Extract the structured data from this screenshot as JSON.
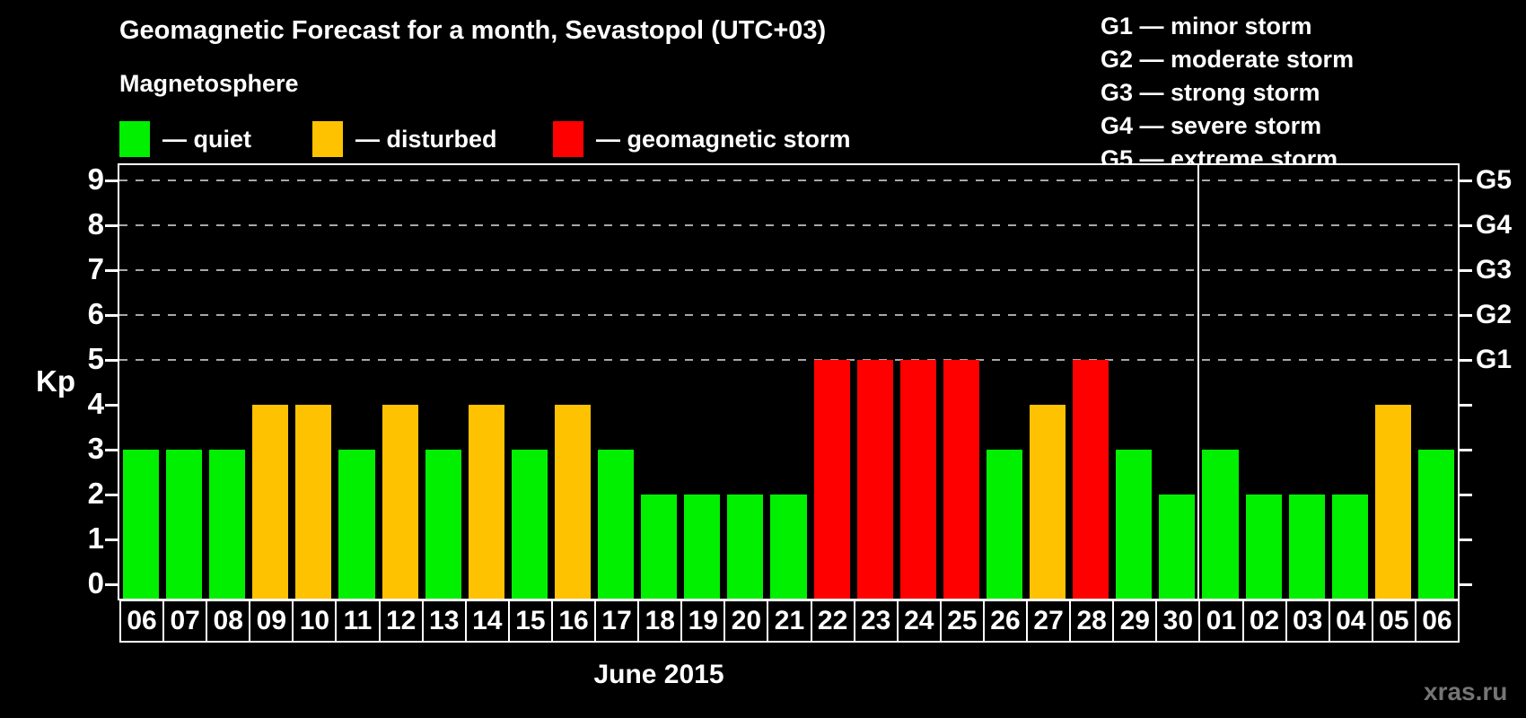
{
  "title": "Geomagnetic Forecast for a month, Sevastopol (UTC+03)",
  "legend": {
    "heading": "Magnetosphere",
    "items": [
      {
        "name": "quiet",
        "label": "— quiet",
        "color": "#00f000"
      },
      {
        "name": "disturbed",
        "label": "— disturbed",
        "color": "#ffc200"
      },
      {
        "name": "storm",
        "label": "— geomagnetic storm",
        "color": "#ff0000"
      }
    ]
  },
  "g_scale_legend": [
    "G1 — minor storm",
    "G2 — moderate storm",
    "G3 — strong storm",
    "G4 — severe storm",
    "G5 — extreme storm"
  ],
  "watermark": "xras.ru",
  "chart_data": {
    "type": "bar",
    "title": "Geomagnetic Forecast for a month, Sevastopol (UTC+03)",
    "ylabel": "Kp",
    "xlabel": "June 2015",
    "ylim": [
      0,
      9
    ],
    "y_ticks": [
      0,
      1,
      2,
      3,
      4,
      5,
      6,
      7,
      8,
      9
    ],
    "gridlines_at_kp": [
      5,
      6,
      7,
      8,
      9
    ],
    "grid": true,
    "legend_position": "top",
    "right_axis": [
      {
        "kp": 5,
        "label": "G1"
      },
      {
        "kp": 6,
        "label": "G2"
      },
      {
        "kp": 7,
        "label": "G3"
      },
      {
        "kp": 8,
        "label": "G4"
      },
      {
        "kp": 9,
        "label": "G5"
      }
    ],
    "month_separator_after_index": 24,
    "status_colors": {
      "quiet": "#00f000",
      "disturbed": "#ffc200",
      "storm": "#ff0000"
    },
    "days": [
      {
        "date": "06",
        "kp": 3,
        "status": "quiet"
      },
      {
        "date": "07",
        "kp": 3,
        "status": "quiet"
      },
      {
        "date": "08",
        "kp": 3,
        "status": "quiet"
      },
      {
        "date": "09",
        "kp": 4,
        "status": "disturbed"
      },
      {
        "date": "10",
        "kp": 4,
        "status": "disturbed"
      },
      {
        "date": "11",
        "kp": 3,
        "status": "quiet"
      },
      {
        "date": "12",
        "kp": 4,
        "status": "disturbed"
      },
      {
        "date": "13",
        "kp": 3,
        "status": "quiet"
      },
      {
        "date": "14",
        "kp": 4,
        "status": "disturbed"
      },
      {
        "date": "15",
        "kp": 3,
        "status": "quiet"
      },
      {
        "date": "16",
        "kp": 4,
        "status": "disturbed"
      },
      {
        "date": "17",
        "kp": 3,
        "status": "quiet"
      },
      {
        "date": "18",
        "kp": 2,
        "status": "quiet"
      },
      {
        "date": "19",
        "kp": 2,
        "status": "quiet"
      },
      {
        "date": "20",
        "kp": 2,
        "status": "quiet"
      },
      {
        "date": "21",
        "kp": 2,
        "status": "quiet"
      },
      {
        "date": "22",
        "kp": 5,
        "status": "storm"
      },
      {
        "date": "23",
        "kp": 5,
        "status": "storm"
      },
      {
        "date": "24",
        "kp": 5,
        "status": "storm"
      },
      {
        "date": "25",
        "kp": 5,
        "status": "storm"
      },
      {
        "date": "26",
        "kp": 3,
        "status": "quiet"
      },
      {
        "date": "27",
        "kp": 4,
        "status": "disturbed"
      },
      {
        "date": "28",
        "kp": 5,
        "status": "storm"
      },
      {
        "date": "29",
        "kp": 3,
        "status": "quiet"
      },
      {
        "date": "30",
        "kp": 2,
        "status": "quiet"
      },
      {
        "date": "01",
        "kp": 3,
        "status": "quiet"
      },
      {
        "date": "02",
        "kp": 2,
        "status": "quiet"
      },
      {
        "date": "03",
        "kp": 2,
        "status": "quiet"
      },
      {
        "date": "04",
        "kp": 2,
        "status": "quiet"
      },
      {
        "date": "05",
        "kp": 4,
        "status": "disturbed"
      },
      {
        "date": "06",
        "kp": 3,
        "status": "quiet"
      }
    ]
  }
}
